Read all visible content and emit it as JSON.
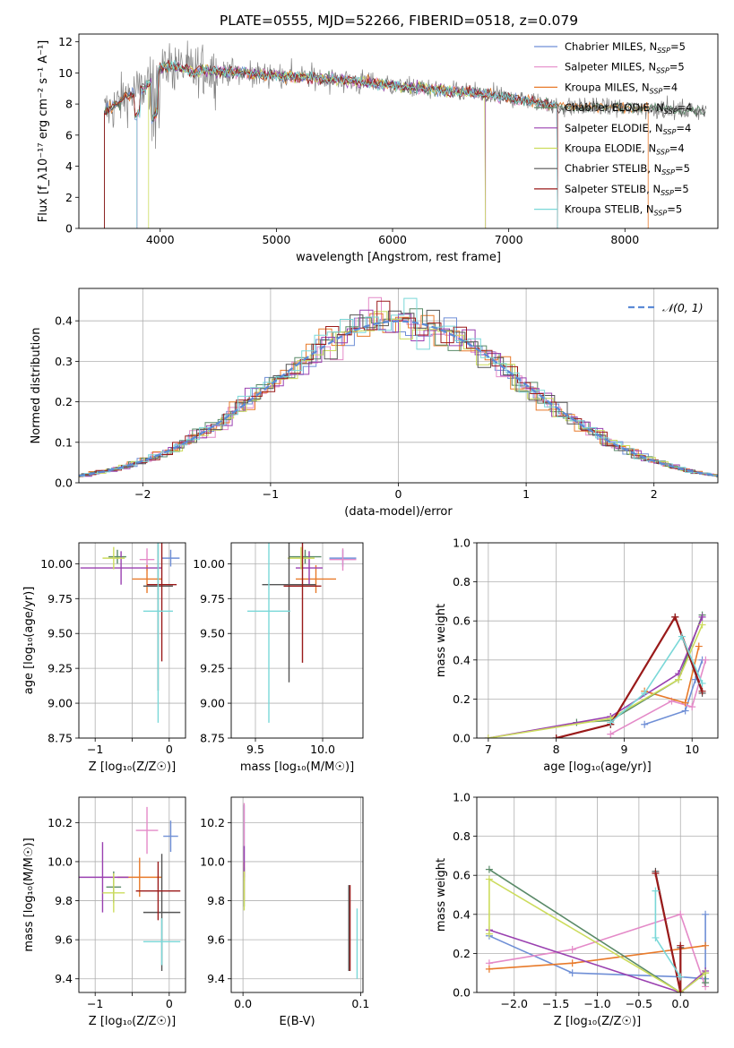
{
  "figure": {
    "title": "PLATE=0555, MJD=52266, FIBERID=0518, z=0.079"
  },
  "series_colors": [
    "#6f8fd6",
    "#e48ac8",
    "#e87a2a",
    "#5a8a68",
    "#9a40b0",
    "#ccdc5c",
    "#555555",
    "#9a1a1a",
    "#7ad8d8"
  ],
  "chart_data": [
    {
      "id": "spectrum",
      "type": "line",
      "xlabel": "wavelength [Angstrom, rest frame]",
      "ylabel": "Flux [f_λ10⁻¹⁷ erg cm⁻² s⁻¹ A⁻¹]",
      "xlim": [
        3300,
        8800
      ],
      "ylim": [
        0,
        12.5
      ],
      "xticks": [
        4000,
        5000,
        6000,
        7000,
        8000
      ],
      "yticks": [
        0,
        2,
        4,
        6,
        8,
        10,
        12
      ],
      "legend_position": "top-right",
      "legend": [
        {
          "label": "Chabrier MILES, N",
          "sub": "SSP",
          "tail": "=5"
        },
        {
          "label": "Salpeter MILES, N",
          "sub": "SSP",
          "tail": "=5"
        },
        {
          "label": "Kroupa MILES, N",
          "sub": "SSP",
          "tail": "=4"
        },
        {
          "label": "Chabrier ELODIE, N",
          "sub": "SSP",
          "tail": "=4"
        },
        {
          "label": "Salpeter ELODIE, N",
          "sub": "SSP",
          "tail": "=4"
        },
        {
          "label": "Kroupa ELODIE, N",
          "sub": "SSP",
          "tail": "=4"
        },
        {
          "label": "Chabrier STELIB, N",
          "sub": "SSP",
          "tail": "=5"
        },
        {
          "label": "Salpeter STELIB, N",
          "sub": "SSP",
          "tail": "=5"
        },
        {
          "label": "Kroupa STELIB, N",
          "sub": "SSP",
          "tail": "=5"
        }
      ],
      "continuum": {
        "wavelength": [
          3520,
          3600,
          3700,
          3800,
          3900,
          4000,
          4100,
          4200,
          4300,
          4400,
          4500,
          4700,
          4900,
          5100,
          5300,
          5500,
          5700,
          5900,
          6100,
          6300,
          6500,
          6700,
          6900,
          7100,
          7300,
          7500,
          7700,
          7900,
          8100,
          8300,
          8500,
          8700
        ],
        "flux": [
          7.5,
          7.8,
          8.5,
          8.8,
          9.3,
          10.3,
          10.5,
          10.3,
          10.0,
          10.2,
          10.1,
          10.0,
          9.9,
          9.8,
          9.7,
          9.6,
          9.4,
          9.3,
          9.1,
          9.0,
          8.8,
          8.7,
          8.5,
          8.3,
          8.0,
          7.8,
          7.8,
          7.8,
          7.7,
          7.7,
          7.6,
          7.6
        ]
      },
      "model_ranges": [
        [
          3520,
          7420
        ],
        [
          3800,
          7420
        ],
        [
          3520,
          8200
        ],
        [
          3520,
          8700
        ],
        [
          3800,
          6800
        ],
        [
          3900,
          6800
        ],
        [
          3520,
          8700
        ],
        [
          3520,
          7420
        ],
        [
          3800,
          7420
        ]
      ]
    },
    {
      "id": "residuals",
      "type": "line",
      "xlabel": "(data-model)/error",
      "ylabel": "Normed distribution",
      "xlim": [
        -2.5,
        2.5
      ],
      "ylim": [
        0,
        0.48
      ],
      "xticks": [
        -2,
        -1,
        0,
        1,
        2
      ],
      "yticks": [
        0.0,
        0.1,
        0.2,
        0.3,
        0.4
      ],
      "legend_position": "top-right",
      "reference_label": "𝒩(0, 1)",
      "hist_bin_width": 0.1
    },
    {
      "id": "age_vs_Z",
      "type": "scatter",
      "xlabel": "Z [log₁₀(Z/Z☉)]",
      "ylabel": "age  [log₁₀(age/yr)]",
      "xlim": [
        -1.22,
        0.22
      ],
      "ylim": [
        8.75,
        10.15
      ],
      "xticks": [
        -1,
        -0.5,
        0
      ],
      "xticklabels": [
        "−1",
        "",
        "0"
      ],
      "yticks": [
        8.75,
        9.0,
        9.25,
        9.5,
        9.75,
        10.0
      ],
      "points": [
        {
          "x": 0.02,
          "xerr": 0.12,
          "y": 10.04,
          "yerr": 0.06
        },
        {
          "x": -0.3,
          "xerr": 0.1,
          "y": 10.03,
          "yerr": 0.08
        },
        {
          "x": -0.3,
          "xerr": 0.2,
          "y": 9.89,
          "yerr": 0.1
        },
        {
          "x": -0.7,
          "xerr": 0.12,
          "y": 10.05,
          "yerr": 0.05
        },
        {
          "x": -0.65,
          "xerr": 0.55,
          "y": 9.97,
          "yerr": 0.12
        },
        {
          "x": -0.75,
          "xerr": 0.15,
          "y": 10.04,
          "yerr": 0.08
        },
        {
          "x": -0.15,
          "xerr": 0.2,
          "y": 9.84,
          "yerr": 0.75
        },
        {
          "x": -0.1,
          "xerr": 0.2,
          "y": 9.85,
          "yerr": 0.55
        },
        {
          "x": -0.15,
          "xerr": 0.2,
          "y": 9.66,
          "yerr": 0.8
        }
      ]
    },
    {
      "id": "age_vs_mass",
      "type": "scatter",
      "xlabel": "mass [log₁₀(M/M☉)]",
      "ylabel": "",
      "xlim": [
        9.32,
        10.3
      ],
      "ylim": [
        8.75,
        10.15
      ],
      "xticks": [
        9.5,
        10.0
      ],
      "xticklabels": [
        "9.5",
        "10.0"
      ],
      "yticks": [
        8.75,
        9.0,
        9.25,
        9.5,
        9.75,
        10.0
      ],
      "points": [
        {
          "x": 10.15,
          "xerr": 0.1,
          "y": 10.04,
          "yerr": 0.06
        },
        {
          "x": 10.15,
          "xerr": 0.1,
          "y": 10.03,
          "yerr": 0.08
        },
        {
          "x": 9.95,
          "xerr": 0.15,
          "y": 9.89,
          "yerr": 0.1
        },
        {
          "x": 9.87,
          "xerr": 0.12,
          "y": 10.05,
          "yerr": 0.05
        },
        {
          "x": 9.9,
          "xerr": 0.1,
          "y": 9.97,
          "yerr": 0.12
        },
        {
          "x": 9.84,
          "xerr": 0.1,
          "y": 10.04,
          "yerr": 0.08
        },
        {
          "x": 9.75,
          "xerr": 0.2,
          "y": 9.85,
          "yerr": 0.7
        },
        {
          "x": 9.85,
          "xerr": 0.14,
          "y": 9.84,
          "yerr": 0.55
        },
        {
          "x": 9.6,
          "xerr": 0.16,
          "y": 9.66,
          "yerr": 0.8
        }
      ]
    },
    {
      "id": "weight_vs_age",
      "type": "line",
      "xlabel": "age  [log₁₀(age/yr)]",
      "ylabel": "mass weight",
      "xlim": [
        6.83,
        10.38
      ],
      "ylim": [
        0,
        1
      ],
      "xticks": [
        7,
        8,
        9,
        10
      ],
      "yticks": [
        0.0,
        0.2,
        0.4,
        0.6,
        0.8,
        1.0
      ],
      "series": [
        {
          "x": [
            9.3,
            9.9,
            10.05,
            10.15
          ],
          "y": [
            0.07,
            0.14,
            0.3,
            0.4
          ]
        },
        {
          "x": [
            8.8,
            9.7,
            10.0,
            10.2
          ],
          "y": [
            0.02,
            0.19,
            0.16,
            0.4
          ]
        },
        {
          "x": [
            9.3,
            9.9,
            10.1
          ],
          "y": [
            0.24,
            0.18,
            0.47
          ]
        },
        {
          "x": [
            8.3,
            8.8,
            9.8,
            10.15
          ],
          "y": [
            0.08,
            0.09,
            0.3,
            0.63
          ]
        },
        {
          "x": [
            7.0,
            8.8,
            9.8,
            10.15
          ],
          "y": [
            0.0,
            0.11,
            0.33,
            0.62
          ]
        },
        {
          "x": [
            7.0,
            8.8,
            9.8,
            10.15
          ],
          "y": [
            0.0,
            0.1,
            0.3,
            0.58
          ]
        },
        {
          "x": [
            8.0,
            8.8,
            9.75,
            10.15
          ],
          "y": [
            0.0,
            0.07,
            0.62,
            0.23
          ]
        },
        {
          "x": [
            8.0,
            8.8,
            9.75,
            10.15
          ],
          "y": [
            0.0,
            0.07,
            0.62,
            0.24
          ]
        },
        {
          "x": [
            8.8,
            9.3,
            9.85,
            10.15
          ],
          "y": [
            0.08,
            0.23,
            0.52,
            0.28
          ]
        }
      ]
    },
    {
      "id": "mass_vs_Z",
      "type": "scatter",
      "xlabel": "Z [log₁₀(Z/Z☉)]",
      "ylabel": "mass [log₁₀(M/M☉)]",
      "xlim": [
        -1.22,
        0.22
      ],
      "ylim": [
        9.33,
        10.33
      ],
      "xticks": [
        -1,
        -0.5,
        0
      ],
      "xticklabels": [
        "−1",
        "",
        "0"
      ],
      "yticks": [
        9.4,
        9.6,
        9.8,
        10.0,
        10.2
      ],
      "points": [
        {
          "x": 0.02,
          "xerr": 0.1,
          "y": 10.13,
          "yerr": 0.08
        },
        {
          "x": -0.3,
          "xerr": 0.15,
          "y": 10.16,
          "yerr": 0.12
        },
        {
          "x": -0.4,
          "xerr": 0.3,
          "y": 9.92,
          "yerr": 0.1
        },
        {
          "x": -0.75,
          "xerr": 0.1,
          "y": 9.87,
          "yerr": 0.08
        },
        {
          "x": -0.9,
          "xerr": 0.35,
          "y": 9.92,
          "yerr": 0.18
        },
        {
          "x": -0.75,
          "xerr": 0.15,
          "y": 9.84,
          "yerr": 0.1
        },
        {
          "x": -0.1,
          "xerr": 0.25,
          "y": 9.74,
          "yerr": 0.3
        },
        {
          "x": -0.15,
          "xerr": 0.3,
          "y": 9.85,
          "yerr": 0.15
        },
        {
          "x": -0.1,
          "xerr": 0.25,
          "y": 9.59,
          "yerr": 0.12
        }
      ]
    },
    {
      "id": "mass_vs_EBV",
      "type": "scatter",
      "xlabel": "E(B-V)",
      "ylabel": "",
      "xlim": [
        -0.01,
        0.102
      ],
      "ylim": [
        9.33,
        10.33
      ],
      "xticks": [
        0.0,
        0.1
      ],
      "xticklabels": [
        "0.0",
        "0.1"
      ],
      "yticks": [
        9.4,
        9.6,
        9.8,
        10.0,
        10.2
      ],
      "points": [
        {
          "x": 0.001,
          "xerr": 0,
          "y": 10.13,
          "yerr": 0.16
        },
        {
          "x": 0.001,
          "xerr": 0,
          "y": 10.1,
          "yerr": 0.2
        },
        {
          "x": 0.001,
          "xerr": 0,
          "y": 9.9,
          "yerr": 0.1
        },
        {
          "x": 0.001,
          "xerr": 0,
          "y": 9.87,
          "yerr": 0.1
        },
        {
          "x": 0.001,
          "xerr": 0,
          "y": 10.0,
          "yerr": 0.08
        },
        {
          "x": 0.001,
          "xerr": 0,
          "y": 9.85,
          "yerr": 0.1
        },
        {
          "x": 0.09,
          "xerr": 0,
          "y": 9.66,
          "yerr": 0.22
        },
        {
          "x": 0.091,
          "xerr": 0,
          "y": 9.66,
          "yerr": 0.22
        },
        {
          "x": 0.097,
          "xerr": 0,
          "y": 9.58,
          "yerr": 0.18
        }
      ]
    },
    {
      "id": "weight_vs_Z",
      "type": "line",
      "xlabel": "Z [log₁₀(Z/Z☉)]",
      "ylabel": "mass weight",
      "xlim": [
        -2.45,
        0.45
      ],
      "ylim": [
        0,
        1
      ],
      "xticks": [
        -2.0,
        -1.5,
        -1.0,
        -0.5,
        0.0
      ],
      "xticklabels": [
        "−2.0",
        "−1.5",
        "−1.0",
        "−0.5",
        "0.0"
      ],
      "yticks": [
        0.0,
        0.2,
        0.4,
        0.6,
        0.8,
        1.0
      ],
      "series": [
        {
          "x": [
            -2.3,
            -1.3,
            0.0,
            0.3,
            0.3
          ],
          "y": [
            0.29,
            0.1,
            0.08,
            0.07,
            0.4
          ]
        },
        {
          "x": [
            -2.3,
            -1.3,
            0.0,
            0.3
          ],
          "y": [
            0.15,
            0.22,
            0.4,
            0.03
          ]
        },
        {
          "x": [
            -2.3,
            -1.3,
            0.3
          ],
          "y": [
            0.12,
            0.15,
            0.24
          ]
        },
        {
          "x": [
            -2.3,
            0.0,
            0.3,
            0.3
          ],
          "y": [
            0.63,
            0.0,
            0.1,
            0.05
          ]
        },
        {
          "x": [
            -2.3,
            0.0,
            0.3
          ],
          "y": [
            0.32,
            0.0,
            0.11
          ]
        },
        {
          "x": [
            -2.3,
            -2.3,
            0.0,
            0.3
          ],
          "y": [
            0.3,
            0.58,
            0.0,
            0.1
          ]
        },
        {
          "x": [
            -0.3,
            0.0,
            0.0
          ],
          "y": [
            0.62,
            0.0,
            0.23
          ]
        },
        {
          "x": [
            -0.3,
            0.0,
            0.0
          ],
          "y": [
            0.61,
            0.0,
            0.24
          ]
        },
        {
          "x": [
            -0.3,
            -0.3,
            0.0
          ],
          "y": [
            0.52,
            0.28,
            0.08
          ]
        }
      ]
    }
  ]
}
